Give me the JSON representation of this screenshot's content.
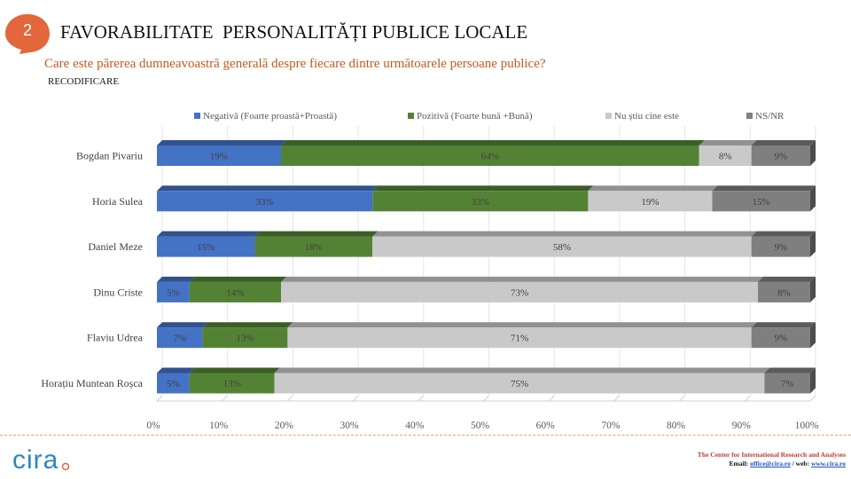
{
  "header": {
    "slide_number": "2",
    "title": "FAVORABILITATE  PERSONALITĂȚI PUBLICE LOCALE",
    "question": "Care este părerea dumneavoastră generală despre fiecare dintre următoarele persoane publice?",
    "note": "RECODIFICARE"
  },
  "chart_data": {
    "type": "bar",
    "orientation": "horizontal",
    "stacked": true,
    "percent": true,
    "categories": [
      "Bogdan Pivariu",
      "Horia Sulea",
      "Daniel Meze",
      "Dinu Criste",
      "Flaviu Udrea",
      "Horațiu Muntean Roșca"
    ],
    "series": [
      {
        "name": "Negativă (Foarte proastă+Proastă)",
        "color": "#4472c4",
        "values": [
          19,
          33,
          15,
          5,
          7,
          5
        ],
        "labels": [
          "19%",
          "33%",
          "15%",
          "5%",
          "7%",
          "5%"
        ]
      },
      {
        "name": "Pozitivă (Foarte bună +Bună)",
        "color": "#548235",
        "values": [
          64,
          33,
          18,
          14,
          13,
          13
        ],
        "labels": [
          "64%",
          "33%",
          "18%",
          "14%",
          "13%",
          "13%"
        ]
      },
      {
        "name": "Nu știu cine este",
        "color": "#c9c9c9",
        "values": [
          8,
          19,
          58,
          73,
          71,
          75
        ],
        "labels": [
          "8%",
          "19%",
          "58%",
          "73%",
          "71%",
          "75%"
        ]
      },
      {
        "name": "NS/NR",
        "color": "#7f7f7f",
        "values": [
          9,
          15,
          9,
          8,
          9,
          7
        ],
        "labels": [
          "9%",
          "15%",
          "9%",
          "8%",
          "9%",
          "7%"
        ]
      }
    ],
    "xlim": [
      0,
      100
    ],
    "x_ticks": [
      "0%",
      "10%",
      "20%",
      "30%",
      "40%",
      "50%",
      "60%",
      "70%",
      "80%",
      "90%",
      "100%"
    ],
    "grid": true,
    "legend": "top"
  },
  "footer": {
    "logo_text": "cira",
    "org": "The Center for International Research and Analyses",
    "email_label": "Email:",
    "email": "office@cira.ro",
    "separator": "/ web:",
    "web": "www.cira.ro"
  }
}
